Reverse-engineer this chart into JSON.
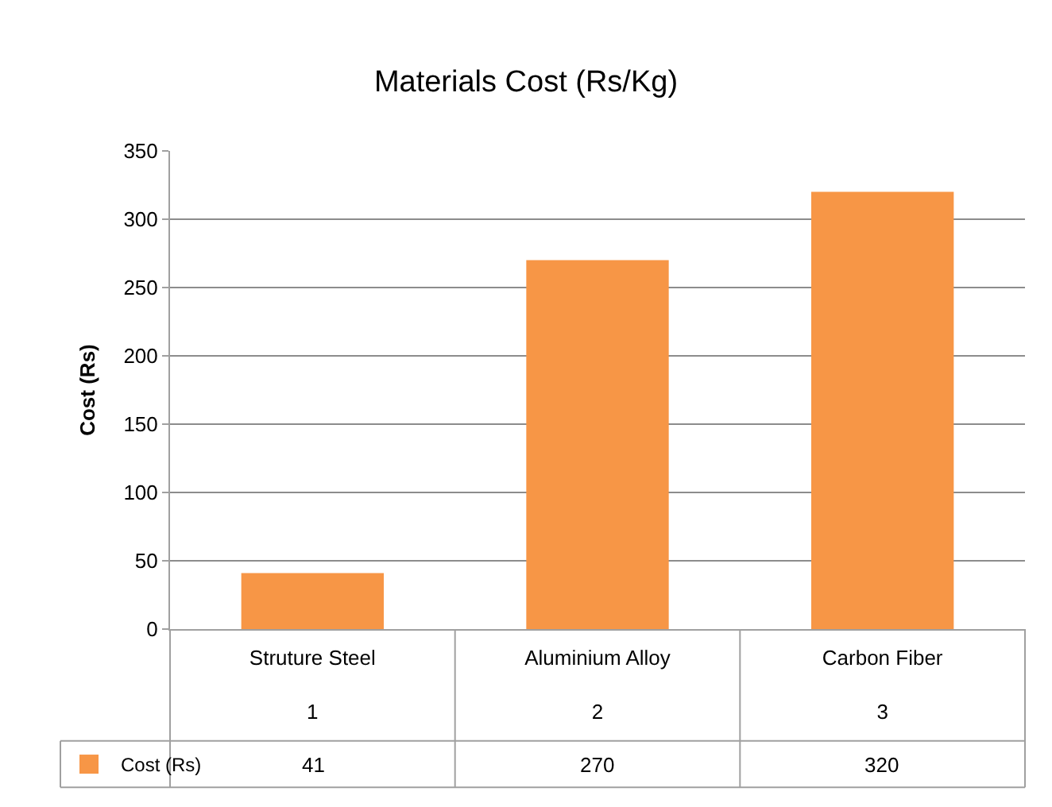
{
  "chart_data": {
    "type": "bar",
    "title": "Materials Cost (Rs/Kg)",
    "ylabel": "Cost (Rs)",
    "categories": [
      "Struture Steel\n\n1",
      "Aluminium Alloy\n\n2",
      "Carbon Fiber\n\n3"
    ],
    "series": [
      {
        "name": "Cost (Rs)",
        "color": "#f79646",
        "values": [
          41,
          270,
          320
        ]
      }
    ],
    "ylim": [
      0,
      350
    ],
    "yticks": [
      0,
      50,
      100,
      150,
      200,
      250,
      300,
      350
    ],
    "grid": "y",
    "legend": "bottom",
    "data_labels": true
  }
}
